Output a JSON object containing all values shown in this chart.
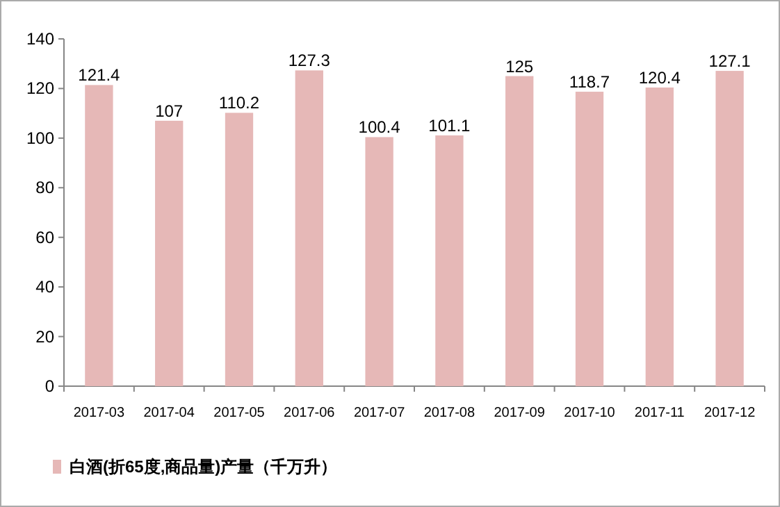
{
  "chart_data": {
    "type": "bar",
    "categories": [
      "2017-03",
      "2017-04",
      "2017-05",
      "2017-06",
      "2017-07",
      "2017-08",
      "2017-09",
      "2017-10",
      "2017-11",
      "2017-12"
    ],
    "series": [
      {
        "name": "白酒(折65度,商品量)产量（千万升）",
        "color": "#e6b8b7",
        "values": [
          121.4,
          107,
          110.2,
          127.3,
          100.4,
          101.1,
          125,
          118.7,
          120.4,
          127.1
        ]
      }
    ],
    "ylim": [
      0,
      140
    ],
    "yticks": [
      0,
      20,
      40,
      60,
      80,
      100,
      120,
      140
    ],
    "data_labels": true,
    "legend": "bottom"
  }
}
